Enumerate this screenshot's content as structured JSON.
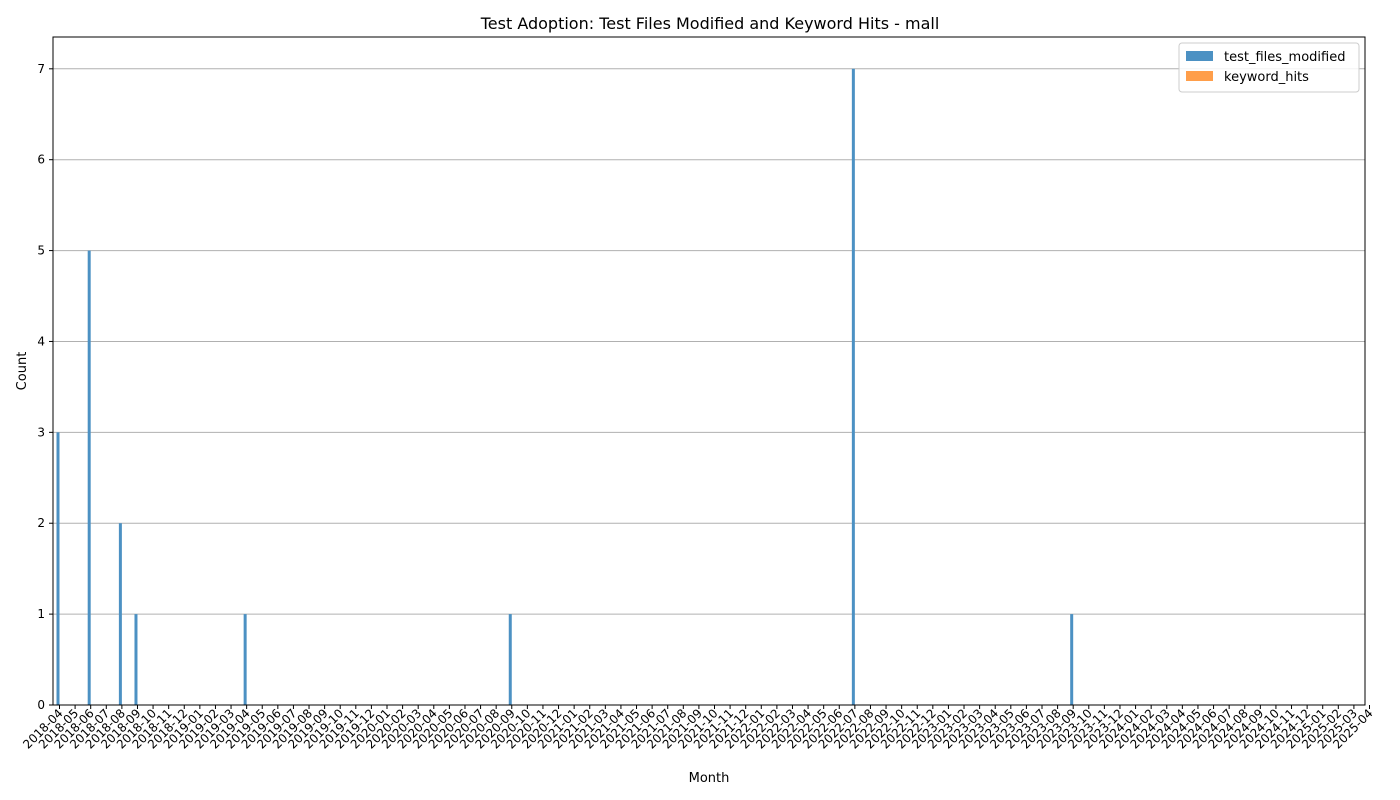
{
  "chart_data": {
    "type": "bar",
    "title": "Test Adoption: Test Files Modified and Keyword Hits - mall",
    "xlabel": "Month",
    "ylabel": "Count",
    "ylim": [
      0,
      7.35
    ],
    "y_ticks": [
      0,
      1,
      2,
      3,
      4,
      5,
      6,
      7
    ],
    "grid": "horizontal",
    "legend_position": "top-right",
    "categories": [
      "2018-04",
      "2018-05",
      "2018-06",
      "2018-07",
      "2018-08",
      "2018-09",
      "2018-10",
      "2018-11",
      "2018-12",
      "2019-01",
      "2019-02",
      "2019-03",
      "2019-04",
      "2019-05",
      "2019-06",
      "2019-07",
      "2019-08",
      "2019-09",
      "2019-10",
      "2019-11",
      "2019-12",
      "2020-01",
      "2020-02",
      "2020-03",
      "2020-04",
      "2020-05",
      "2020-06",
      "2020-07",
      "2020-08",
      "2020-09",
      "2020-10",
      "2020-11",
      "2020-12",
      "2021-01",
      "2021-02",
      "2021-03",
      "2021-04",
      "2021-05",
      "2021-06",
      "2021-07",
      "2021-08",
      "2021-09",
      "2021-10",
      "2021-11",
      "2021-12",
      "2022-01",
      "2022-02",
      "2022-03",
      "2022-04",
      "2022-05",
      "2022-06",
      "2022-07",
      "2022-08",
      "2022-09",
      "2022-10",
      "2022-11",
      "2022-12",
      "2023-01",
      "2023-02",
      "2023-03",
      "2023-04",
      "2023-05",
      "2023-06",
      "2023-07",
      "2023-08",
      "2023-09",
      "2023-10",
      "2023-11",
      "2023-12",
      "2024-01",
      "2024-02",
      "2024-03",
      "2024-04",
      "2024-05",
      "2024-06",
      "2024-07",
      "2024-08",
      "2024-09",
      "2024-10",
      "2024-11",
      "2024-12",
      "2025-01",
      "2025-02",
      "2025-03",
      "2025-04"
    ],
    "series": [
      {
        "name": "test_files_modified",
        "color": "#4c91c3",
        "values": [
          3,
          0,
          5,
          0,
          2,
          1,
          0,
          0,
          0,
          0,
          0,
          0,
          1,
          0,
          0,
          0,
          0,
          0,
          0,
          0,
          0,
          0,
          0,
          0,
          0,
          0,
          0,
          0,
          0,
          1,
          0,
          0,
          0,
          0,
          0,
          0,
          0,
          0,
          0,
          0,
          0,
          0,
          0,
          0,
          0,
          0,
          0,
          0,
          0,
          0,
          0,
          7,
          0,
          0,
          0,
          0,
          0,
          0,
          0,
          0,
          0,
          0,
          0,
          0,
          0,
          1,
          0,
          0,
          0,
          0,
          0,
          0,
          0,
          0,
          0,
          0,
          0,
          0,
          0,
          0,
          0,
          0,
          0,
          0,
          0
        ]
      },
      {
        "name": "keyword_hits",
        "color": "#ff9e4a",
        "values": [
          0,
          0,
          0,
          0,
          0,
          0,
          0,
          0,
          0,
          0,
          0,
          0,
          0,
          0,
          0,
          0,
          0,
          0,
          0,
          0,
          0,
          0,
          0,
          0,
          0,
          0,
          0,
          0,
          0,
          0,
          0,
          0,
          0,
          0,
          0,
          0,
          0,
          0,
          0,
          0,
          0,
          0,
          0,
          0,
          0,
          0,
          0,
          0,
          0,
          0,
          0,
          0,
          0,
          0,
          0,
          0,
          0,
          0,
          0,
          0,
          0,
          0,
          0,
          0,
          0,
          0,
          0,
          0,
          0,
          0,
          0,
          0,
          0,
          0,
          0,
          0,
          0,
          0,
          0,
          0,
          0,
          0,
          0,
          0,
          0
        ]
      }
    ]
  }
}
